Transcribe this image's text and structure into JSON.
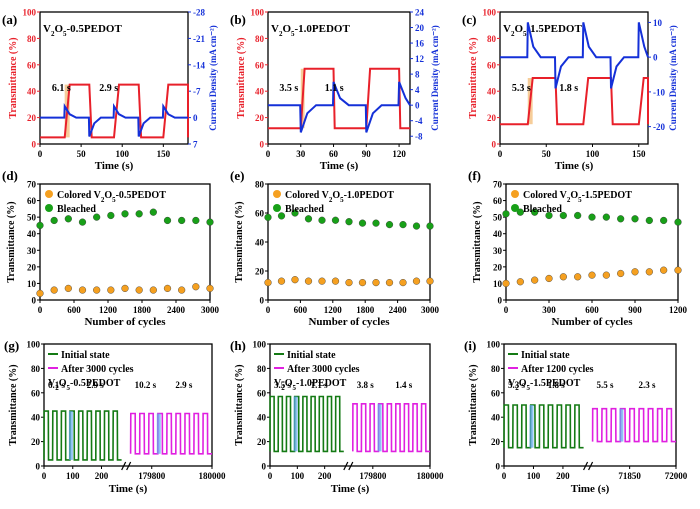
{
  "colors": {
    "red": "#e8202a",
    "blue": "#1430d8",
    "orange": "#f5a020",
    "green": "#18a018",
    "dark_green": "#147a14",
    "magenta": "#e020e0",
    "shade": "#f4c080",
    "light_blue": "#60a8f0"
  },
  "chart_data": [
    {
      "id": "a",
      "type": "line",
      "panel_label": "(a)",
      "title": "V2O5-0.5PEDOT",
      "xlabel": "Time (s)",
      "ylabel": "Transmittance (%)",
      "y2label": "Current Density (mA cm⁻²)",
      "xlim": [
        0,
        180
      ],
      "ylim": [
        0,
        100
      ],
      "y2lim": [
        7,
        -28
      ],
      "xticks": [
        0,
        50,
        100,
        150
      ],
      "yticks": [
        0,
        20,
        40,
        60,
        80,
        100
      ],
      "y2ticks": [
        7,
        0,
        -7,
        -14,
        -21,
        -28
      ],
      "annotations": [
        "6.1 s",
        "2.9 s"
      ],
      "series": [
        {
          "axis": "left",
          "color": "red",
          "period": 60,
          "t0": 30,
          "rise": 6.1,
          "fall": 2.9,
          "high": 45,
          "low": 5,
          "pulse": 0.5
        },
        {
          "axis": "right",
          "color": "blue",
          "period": 60,
          "t0": 30,
          "shape": "spikes",
          "ox_peak": -3,
          "red_peak": 5,
          "base": 0
        }
      ]
    },
    {
      "id": "b",
      "type": "line",
      "panel_label": "(b)",
      "title": "V2O5-1.0PEDOT",
      "xlabel": "Time (s)",
      "ylabel": "Transmittance (%)",
      "y2label": "Current Density (mA cm⁻²)",
      "xlim": [
        0,
        130
      ],
      "ylim": [
        0,
        100
      ],
      "y2lim": [
        -10,
        24
      ],
      "xticks": [
        0,
        30,
        60,
        90,
        120
      ],
      "yticks": [
        0,
        20,
        40,
        60,
        80,
        100
      ],
      "y2ticks": [
        -8,
        -4,
        0,
        4,
        8,
        12,
        16,
        20,
        24
      ],
      "annotations": [
        "3.5 s",
        "1.1 s"
      ],
      "series": [
        {
          "axis": "left",
          "color": "red",
          "period": 60,
          "t0": 30,
          "rise": 3.5,
          "fall": 1.1,
          "high": 57,
          "low": 12,
          "pulse": 0.5
        },
        {
          "axis": "right",
          "color": "blue",
          "period": 60,
          "t0": 30,
          "shape": "spikes",
          "ox_peak": -7,
          "red_peak": 6,
          "base": 0
        }
      ]
    },
    {
      "id": "c",
      "type": "line",
      "panel_label": "(c)",
      "title": "V2O5-1.5PEDOT",
      "xlabel": "Time (s)",
      "ylabel": "Transmittance (%)",
      "y2label": "Current Density (mA cm⁻²)",
      "xlim": [
        0,
        160
      ],
      "ylim": [
        0,
        100
      ],
      "y2lim": [
        -25,
        13
      ],
      "xticks": [
        0,
        50,
        100,
        150
      ],
      "yticks": [
        0,
        20,
        40,
        60,
        80,
        100
      ],
      "y2ticks": [
        10,
        0,
        -10,
        -20
      ],
      "annotations": [
        "5.3 s",
        "1.8 s"
      ],
      "series": [
        {
          "axis": "left",
          "color": "red",
          "period": 60,
          "t0": 30,
          "rise": 5.3,
          "fall": 1.8,
          "high": 50,
          "low": 15,
          "pulse": 0.5
        },
        {
          "axis": "right",
          "color": "blue",
          "period": 60,
          "t0": 30,
          "shape": "spikes",
          "ox_peak": 10,
          "red_peak": -9,
          "base": 0
        }
      ]
    },
    {
      "id": "d",
      "type": "scatter",
      "panel_label": "(d)",
      "xlabel": "Number of cycles",
      "ylabel": "Transmittance (%)",
      "xlim": [
        0,
        3000
      ],
      "ylim": [
        0,
        70
      ],
      "xticks": [
        0,
        600,
        1200,
        1800,
        2400,
        3000
      ],
      "yticks": [
        0,
        10,
        20,
        30,
        40,
        50,
        60,
        70
      ],
      "legend": [
        "Colored V2O5-0.5PEDOT",
        "Bleached"
      ],
      "series": [
        {
          "name": "Colored V2O5-0.5PEDOT",
          "color": "orange",
          "x": [
            0,
            250,
            500,
            750,
            1000,
            1250,
            1500,
            1750,
            2000,
            2250,
            2500,
            2750,
            3000
          ],
          "y": [
            4,
            6,
            7,
            6,
            6,
            6,
            7,
            6,
            6,
            7,
            6,
            8,
            7
          ]
        },
        {
          "name": "Bleached",
          "color": "green",
          "x": [
            0,
            250,
            500,
            750,
            1000,
            1250,
            1500,
            1750,
            2000,
            2250,
            2500,
            2750,
            3000
          ],
          "y": [
            45,
            48,
            49,
            47,
            50,
            51,
            52,
            52,
            53,
            48,
            48,
            48,
            47
          ]
        }
      ]
    },
    {
      "id": "e",
      "type": "scatter",
      "panel_label": "(e)",
      "xlabel": "Number of cycles",
      "ylabel": "Transmittance (%)",
      "xlim": [
        0,
        3000
      ],
      "ylim": [
        0,
        80
      ],
      "xticks": [
        0,
        600,
        1200,
        1800,
        2400,
        3000
      ],
      "yticks": [
        0,
        20,
        40,
        60,
        80
      ],
      "legend": [
        "Colored V2O5-1.0PEDOT",
        "Bleached"
      ],
      "series": [
        {
          "name": "Colored V2O5-1.0PEDOT",
          "color": "orange",
          "x": [
            0,
            250,
            500,
            750,
            1000,
            1250,
            1500,
            1750,
            2000,
            2250,
            2500,
            2750,
            3000
          ],
          "y": [
            12,
            13,
            14,
            13,
            13,
            13,
            12,
            12,
            12,
            12,
            12,
            13,
            13
          ]
        },
        {
          "name": "Bleached",
          "color": "green",
          "x": [
            0,
            250,
            500,
            750,
            1000,
            1250,
            1500,
            1750,
            2000,
            2250,
            2500,
            2750,
            3000
          ],
          "y": [
            57,
            58,
            60,
            56,
            55,
            55,
            54,
            53,
            53,
            52,
            52,
            51,
            51
          ]
        }
      ]
    },
    {
      "id": "f",
      "type": "scatter",
      "panel_label": "(f)",
      "xlabel": "Number of cycles",
      "ylabel": "Transmittance (%)",
      "xlim": [
        0,
        1200
      ],
      "ylim": [
        0,
        70
      ],
      "xticks": [
        0,
        300,
        600,
        900,
        1200
      ],
      "yticks": [
        0,
        10,
        20,
        30,
        40,
        50,
        60,
        70
      ],
      "legend": [
        "Colored V2O5-1.5PEDOT",
        "Bleached"
      ],
      "series": [
        {
          "name": "Colored V2O5-1.5PEDOT",
          "color": "orange",
          "x": [
            0,
            100,
            200,
            300,
            400,
            500,
            600,
            700,
            800,
            900,
            1000,
            1100,
            1200
          ],
          "y": [
            10,
            11,
            12,
            13,
            14,
            14,
            15,
            15,
            16,
            17,
            17,
            18,
            18
          ]
        },
        {
          "name": "Bleached",
          "color": "green",
          "x": [
            0,
            100,
            200,
            300,
            400,
            500,
            600,
            700,
            800,
            900,
            1000,
            1100,
            1200
          ],
          "y": [
            52,
            53,
            53,
            51,
            51,
            51,
            50,
            50,
            49,
            49,
            48,
            48,
            47
          ]
        }
      ]
    },
    {
      "id": "g",
      "type": "line",
      "panel_label": "(g)",
      "title": "V2O5-0.5PEDOT",
      "xlabel": "Time (s)",
      "ylabel": "Transmittance (%)",
      "ylim": [
        0,
        100
      ],
      "yticks": [
        0,
        20,
        40,
        60,
        80,
        100
      ],
      "legend": [
        "Initial state",
        "After 3000 cycles"
      ],
      "left": {
        "xlim": [
          0,
          270
        ],
        "xticks": [
          0,
          100,
          200
        ],
        "period": 30,
        "high": 45,
        "low": 5,
        "annotations": [
          "6.1 s",
          "2.9 s"
        ]
      },
      "right": {
        "xlim": [
          179730,
          180000
        ],
        "xticks": [
          179800,
          180000
        ],
        "period": 30,
        "high": 43,
        "low": 10,
        "annotations": [
          "10.2 s",
          "2.9 s"
        ]
      }
    },
    {
      "id": "h",
      "type": "line",
      "panel_label": "(h)",
      "title": "V2O5-1.0PEDOT",
      "xlabel": "Time (s)",
      "ylabel": "Transmittance (%)",
      "ylim": [
        0,
        100
      ],
      "yticks": [
        0,
        20,
        40,
        60,
        80,
        100
      ],
      "legend": [
        "Initial state",
        "After 3000 cycles"
      ],
      "left": {
        "xlim": [
          0,
          270
        ],
        "xticks": [
          0,
          100,
          200
        ],
        "period": 30,
        "high": 57,
        "low": 12,
        "annotations": [
          "3.5 s",
          "1.1 s"
        ]
      },
      "right": {
        "xlim": [
          179730,
          180000
        ],
        "xticks": [
          179800,
          180000
        ],
        "period": 30,
        "high": 51,
        "low": 12,
        "annotations": [
          "3.8 s",
          "1.4 s"
        ]
      }
    },
    {
      "id": "i",
      "type": "line",
      "panel_label": "(i)",
      "title": "V2O5-1.5PEDOT",
      "xlabel": "Time (s)",
      "ylabel": "Transmittance (%)",
      "ylim": [
        0,
        100
      ],
      "yticks": [
        0,
        20,
        40,
        60,
        80,
        100
      ],
      "legend": [
        "Initial state",
        "After 1200 cycles"
      ],
      "left": {
        "xlim": [
          0,
          270
        ],
        "xticks": [
          0,
          100,
          200
        ],
        "period": 30,
        "high": 50,
        "low": 15,
        "annotations": [
          "5.3 s",
          "1.8 s"
        ]
      },
      "right": {
        "xlim": [
          71730,
          72000
        ],
        "xticks": [
          71850,
          72000
        ],
        "period": 30,
        "high": 47,
        "low": 20,
        "annotations": [
          "5.5 s",
          "2.3 s"
        ]
      }
    }
  ]
}
